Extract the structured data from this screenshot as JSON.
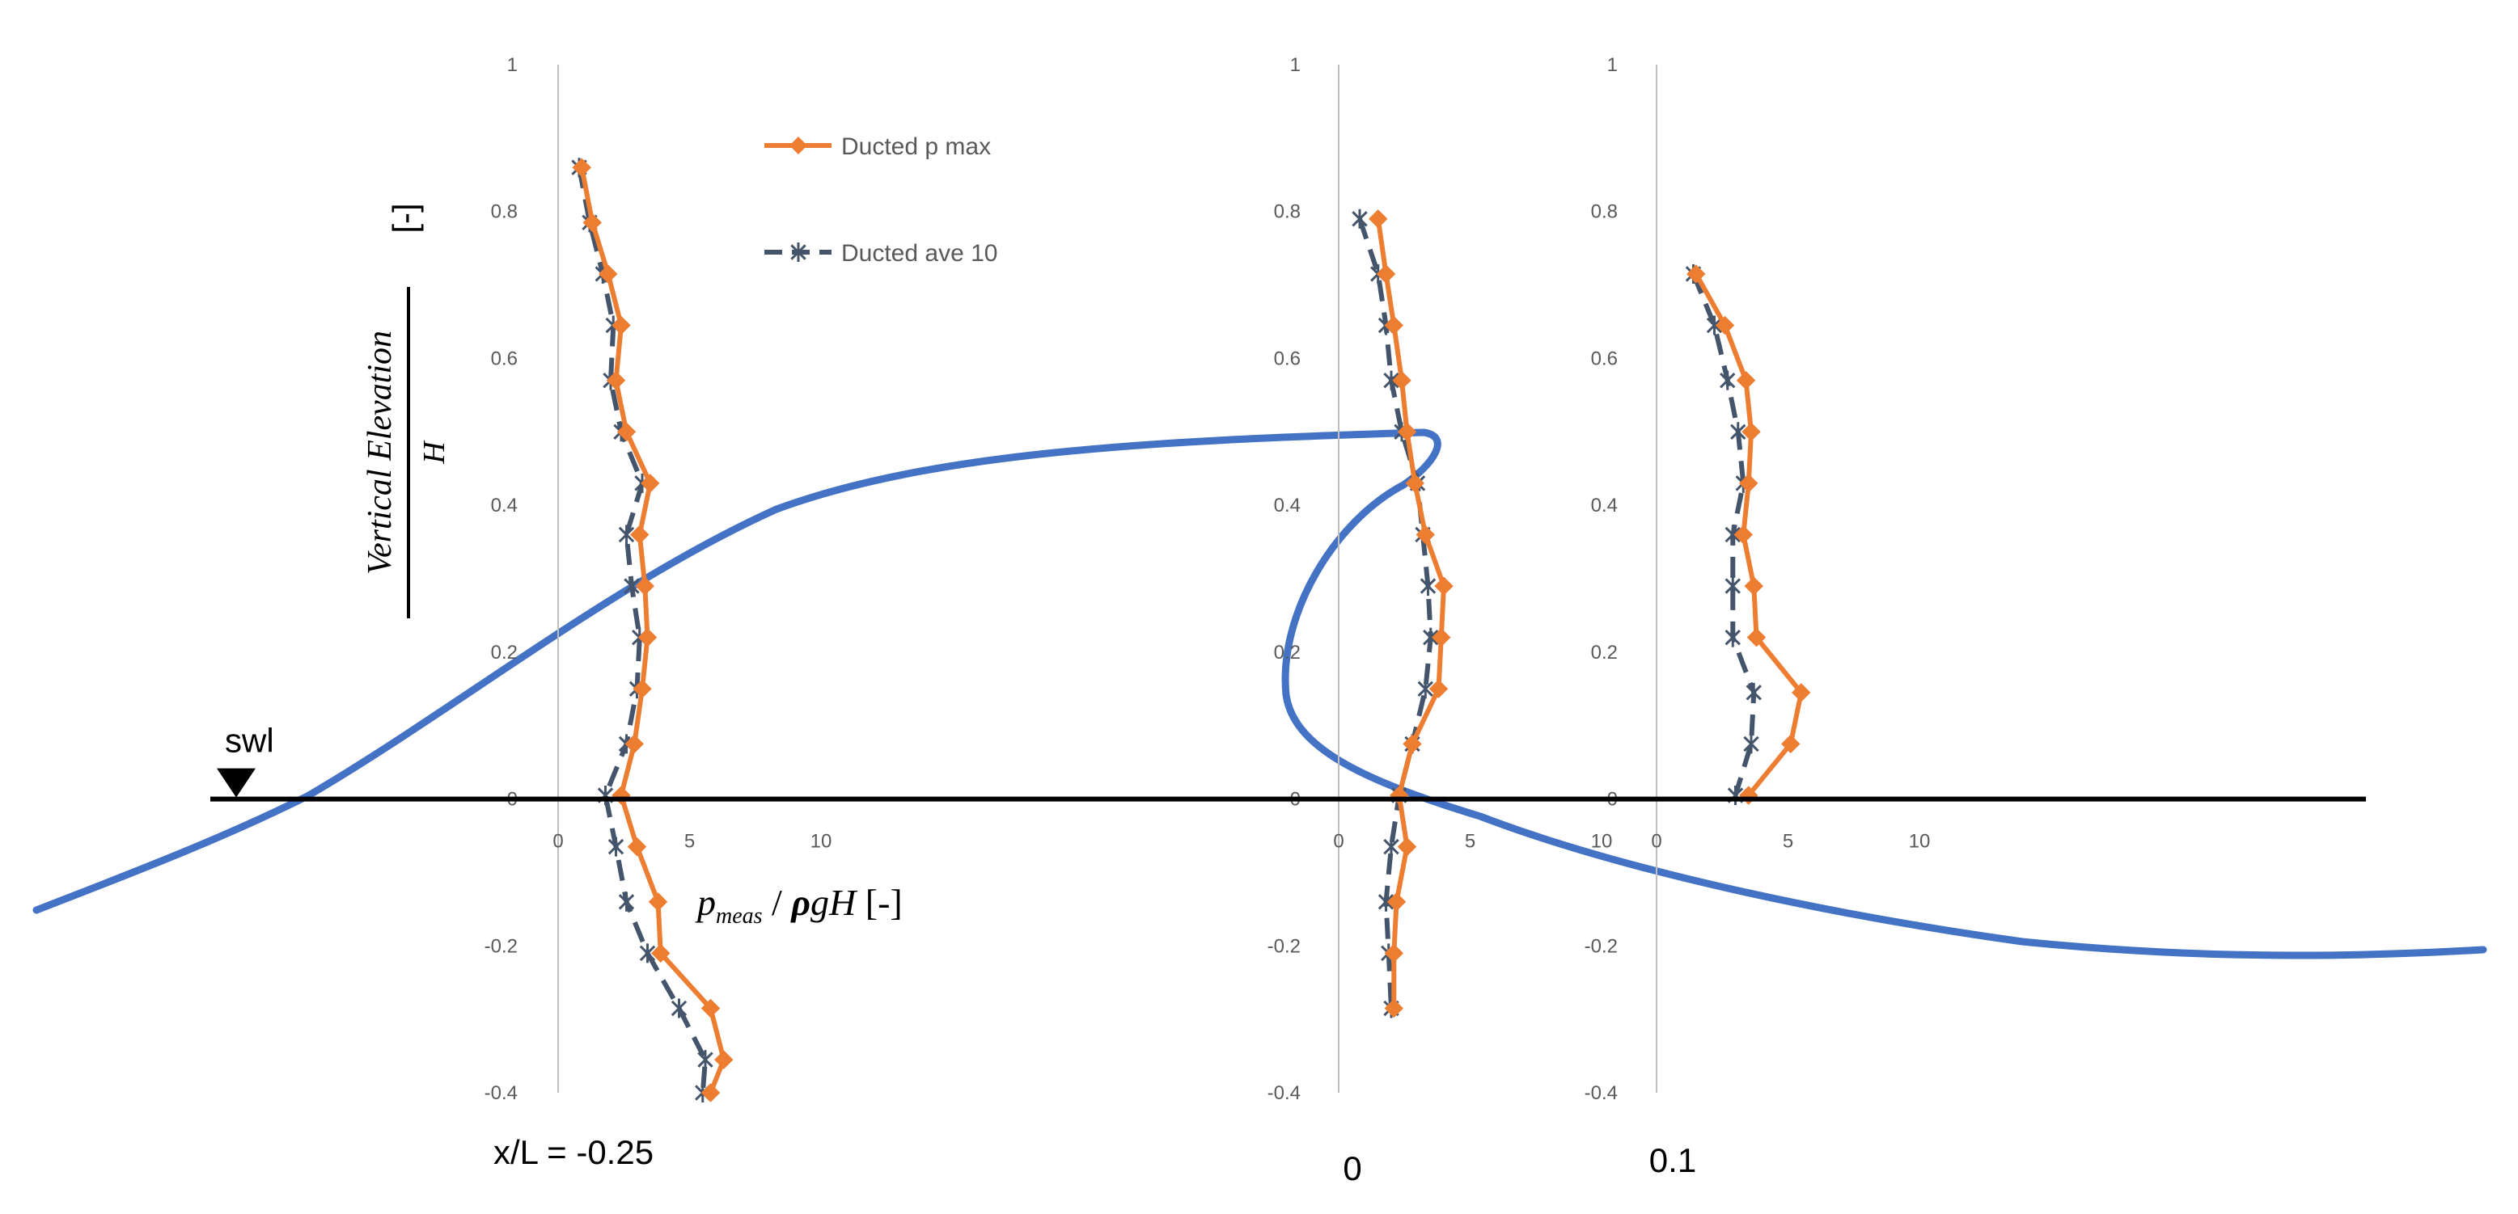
{
  "chart_data": {
    "type": "line",
    "ylabel_numerator": "Vertical Elevation",
    "ylabel_denominator": "H",
    "ylabel_unit": "[-]",
    "xlabel": {
      "p": "p",
      "sub": "meas",
      "rest_rho": "ρ",
      "rest_gH": "gH",
      "unit": "[-]"
    },
    "swl_label": "swl",
    "ylim": [
      -0.4,
      1.0
    ],
    "xlim": [
      0,
      10
    ],
    "colors": {
      "pmax": "#ED7D31",
      "ave": "#44546A",
      "wave": "#4472C4",
      "axis": "#BFBFBF"
    },
    "legend": [
      {
        "name": "Ducted p max",
        "series": "pmax"
      },
      {
        "name": "Ducted ave 10",
        "series": "ave"
      }
    ],
    "panels": [
      {
        "location_label": "x/L = -0.25",
        "y_ticks": [
          "1",
          "0.8",
          "0.6",
          "0.4",
          "0.2",
          "0",
          "-0.2",
          "-0.4"
        ],
        "x_ticks": [
          "0",
          "5",
          "10"
        ],
        "series": {
          "pmax": {
            "x": [
              0.9,
              1.3,
              1.9,
              2.4,
              2.2,
              2.6,
              3.5,
              3.1,
              3.3,
              3.4,
              3.2,
              2.9,
              2.4,
              3.0,
              3.8,
              3.9,
              5.8,
              6.3,
              5.8
            ],
            "y": [
              0.86,
              0.785,
              0.715,
              0.645,
              0.57,
              0.5,
              0.43,
              0.36,
              0.29,
              0.22,
              0.15,
              0.075,
              0.005,
              -0.065,
              -0.14,
              -0.21,
              -0.285,
              -0.355,
              -0.4
            ]
          },
          "ave": {
            "x": [
              0.8,
              1.2,
              1.7,
              2.1,
              2.0,
              2.4,
              3.2,
              2.6,
              2.8,
              3.1,
              3.0,
              2.6,
              1.8,
              2.2,
              2.6,
              3.4,
              4.6,
              5.6,
              5.5
            ],
            "y": [
              0.86,
              0.785,
              0.715,
              0.645,
              0.57,
              0.5,
              0.43,
              0.36,
              0.29,
              0.22,
              0.15,
              0.075,
              0.005,
              -0.065,
              -0.14,
              -0.21,
              -0.285,
              -0.355,
              -0.4
            ]
          }
        }
      },
      {
        "location_label": "0",
        "y_ticks": [
          "1",
          "0.8",
          "0.6",
          "0.4",
          "0.2",
          "0",
          "-0.2",
          "-0.4"
        ],
        "x_ticks": [
          "0",
          "5",
          "10"
        ],
        "series": {
          "pmax": {
            "x": [
              1.5,
              1.8,
              2.1,
              2.4,
              2.6,
              2.9,
              3.3,
              4.0,
              3.9,
              3.8,
              2.8,
              2.3,
              2.6,
              2.2,
              2.1,
              2.1
            ],
            "y": [
              0.79,
              0.715,
              0.645,
              0.57,
              0.5,
              0.43,
              0.36,
              0.29,
              0.22,
              0.15,
              0.075,
              0.005,
              -0.065,
              -0.14,
              -0.21,
              -0.285
            ]
          },
          "ave": {
            "x": [
              0.8,
              1.5,
              1.8,
              2.0,
              2.4,
              3.0,
              3.2,
              3.4,
              3.5,
              3.3,
              2.8,
              2.3,
              2.0,
              1.8,
              1.9,
              2.0
            ],
            "y": [
              0.79,
              0.715,
              0.645,
              0.57,
              0.5,
              0.43,
              0.36,
              0.29,
              0.22,
              0.15,
              0.075,
              0.005,
              -0.065,
              -0.14,
              -0.21,
              -0.285
            ]
          }
        }
      },
      {
        "location_label": "0.1",
        "y_ticks": [
          "1",
          "0.8",
          "0.6",
          "0.4",
          "0.2",
          "0",
          "-0.2",
          "-0.4"
        ],
        "x_ticks": [
          "0",
          "5",
          "10"
        ],
        "series": {
          "pmax": {
            "x": [
              1.5,
              2.6,
              3.4,
              3.6,
              3.5,
              3.3,
              3.7,
              3.8,
              5.5,
              5.1,
              3.5
            ],
            "y": [
              0.715,
              0.645,
              0.57,
              0.5,
              0.43,
              0.36,
              0.29,
              0.22,
              0.145,
              0.075,
              0.005
            ]
          },
          "ave": {
            "x": [
              1.4,
              2.2,
              2.7,
              3.1,
              3.3,
              2.9,
              2.9,
              2.9,
              3.7,
              3.6,
              3.0
            ],
            "y": [
              0.715,
              0.645,
              0.57,
              0.5,
              0.43,
              0.36,
              0.29,
              0.22,
              0.145,
              0.075,
              0.005
            ]
          }
        }
      }
    ]
  }
}
